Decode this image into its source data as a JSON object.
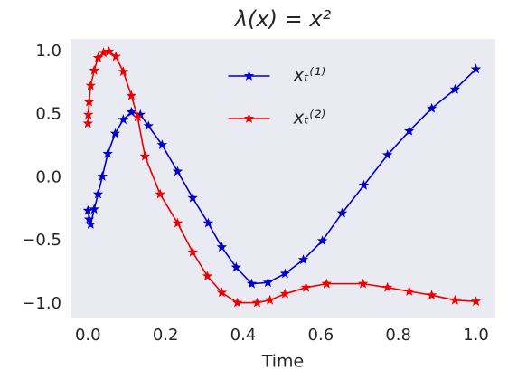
{
  "chart_data": {
    "type": "line",
    "title": "λ(x) = x²",
    "xlabel": "Time",
    "xlim": [
      -0.045,
      1.05
    ],
    "ylim": [
      -1.115,
      1.1
    ],
    "xticks": [
      {
        "value": 0,
        "label": "0.0"
      },
      0.2,
      0.4,
      0.6,
      0.8,
      {
        "value": 1,
        "label": "1.0"
      }
    ],
    "yticks": [
      {
        "value": -1,
        "label": "−1.0"
      },
      {
        "value": -0.5,
        "label": "−0.5"
      },
      {
        "value": 0,
        "label": "0.0"
      },
      0.5,
      {
        "value": 1,
        "label": "1.0"
      }
    ],
    "grid": false,
    "legend": "upper center",
    "series": [
      {
        "name": "xₜ⁽¹⁾",
        "color": "#0000cc",
        "x": [
          0.0,
          0.003,
          0.007,
          0.016,
          0.026,
          0.037,
          0.051,
          0.07,
          0.091,
          0.112,
          0.135,
          0.156,
          0.191,
          0.231,
          0.27,
          0.31,
          0.345,
          0.382,
          0.422,
          0.464,
          0.508,
          0.555,
          0.604,
          0.655,
          0.711,
          0.772,
          0.828,
          0.886,
          0.946,
          1.0
        ],
        "values": [
          -0.26,
          -0.33,
          -0.37,
          -0.25,
          -0.13,
          0.01,
          0.19,
          0.35,
          0.46,
          0.52,
          0.5,
          0.41,
          0.26,
          0.05,
          -0.16,
          -0.36,
          -0.55,
          -0.71,
          -0.84,
          -0.83,
          -0.76,
          -0.65,
          -0.5,
          -0.28,
          -0.06,
          0.18,
          0.37,
          0.55,
          0.7,
          0.86
        ]
      },
      {
        "name": "xₜ⁽²⁾",
        "color": "#ee0000",
        "x": [
          0.0,
          0.001,
          0.003,
          0.007,
          0.016,
          0.026,
          0.04,
          0.054,
          0.072,
          0.091,
          0.112,
          0.128,
          0.147,
          0.186,
          0.231,
          0.27,
          0.308,
          0.345,
          0.385,
          0.436,
          0.469,
          0.508,
          0.562,
          0.615,
          0.709,
          0.772,
          0.828,
          0.886,
          0.946,
          1.0
        ],
        "values": [
          0.43,
          0.5,
          0.6,
          0.73,
          0.85,
          0.95,
          0.99,
          1.0,
          0.96,
          0.84,
          0.65,
          0.48,
          0.17,
          -0.13,
          -0.36,
          -0.59,
          -0.78,
          -0.91,
          -0.99,
          -0.99,
          -0.97,
          -0.92,
          -0.87,
          -0.84,
          -0.84,
          -0.87,
          -0.9,
          -0.93,
          -0.97,
          -0.98
        ]
      }
    ]
  }
}
